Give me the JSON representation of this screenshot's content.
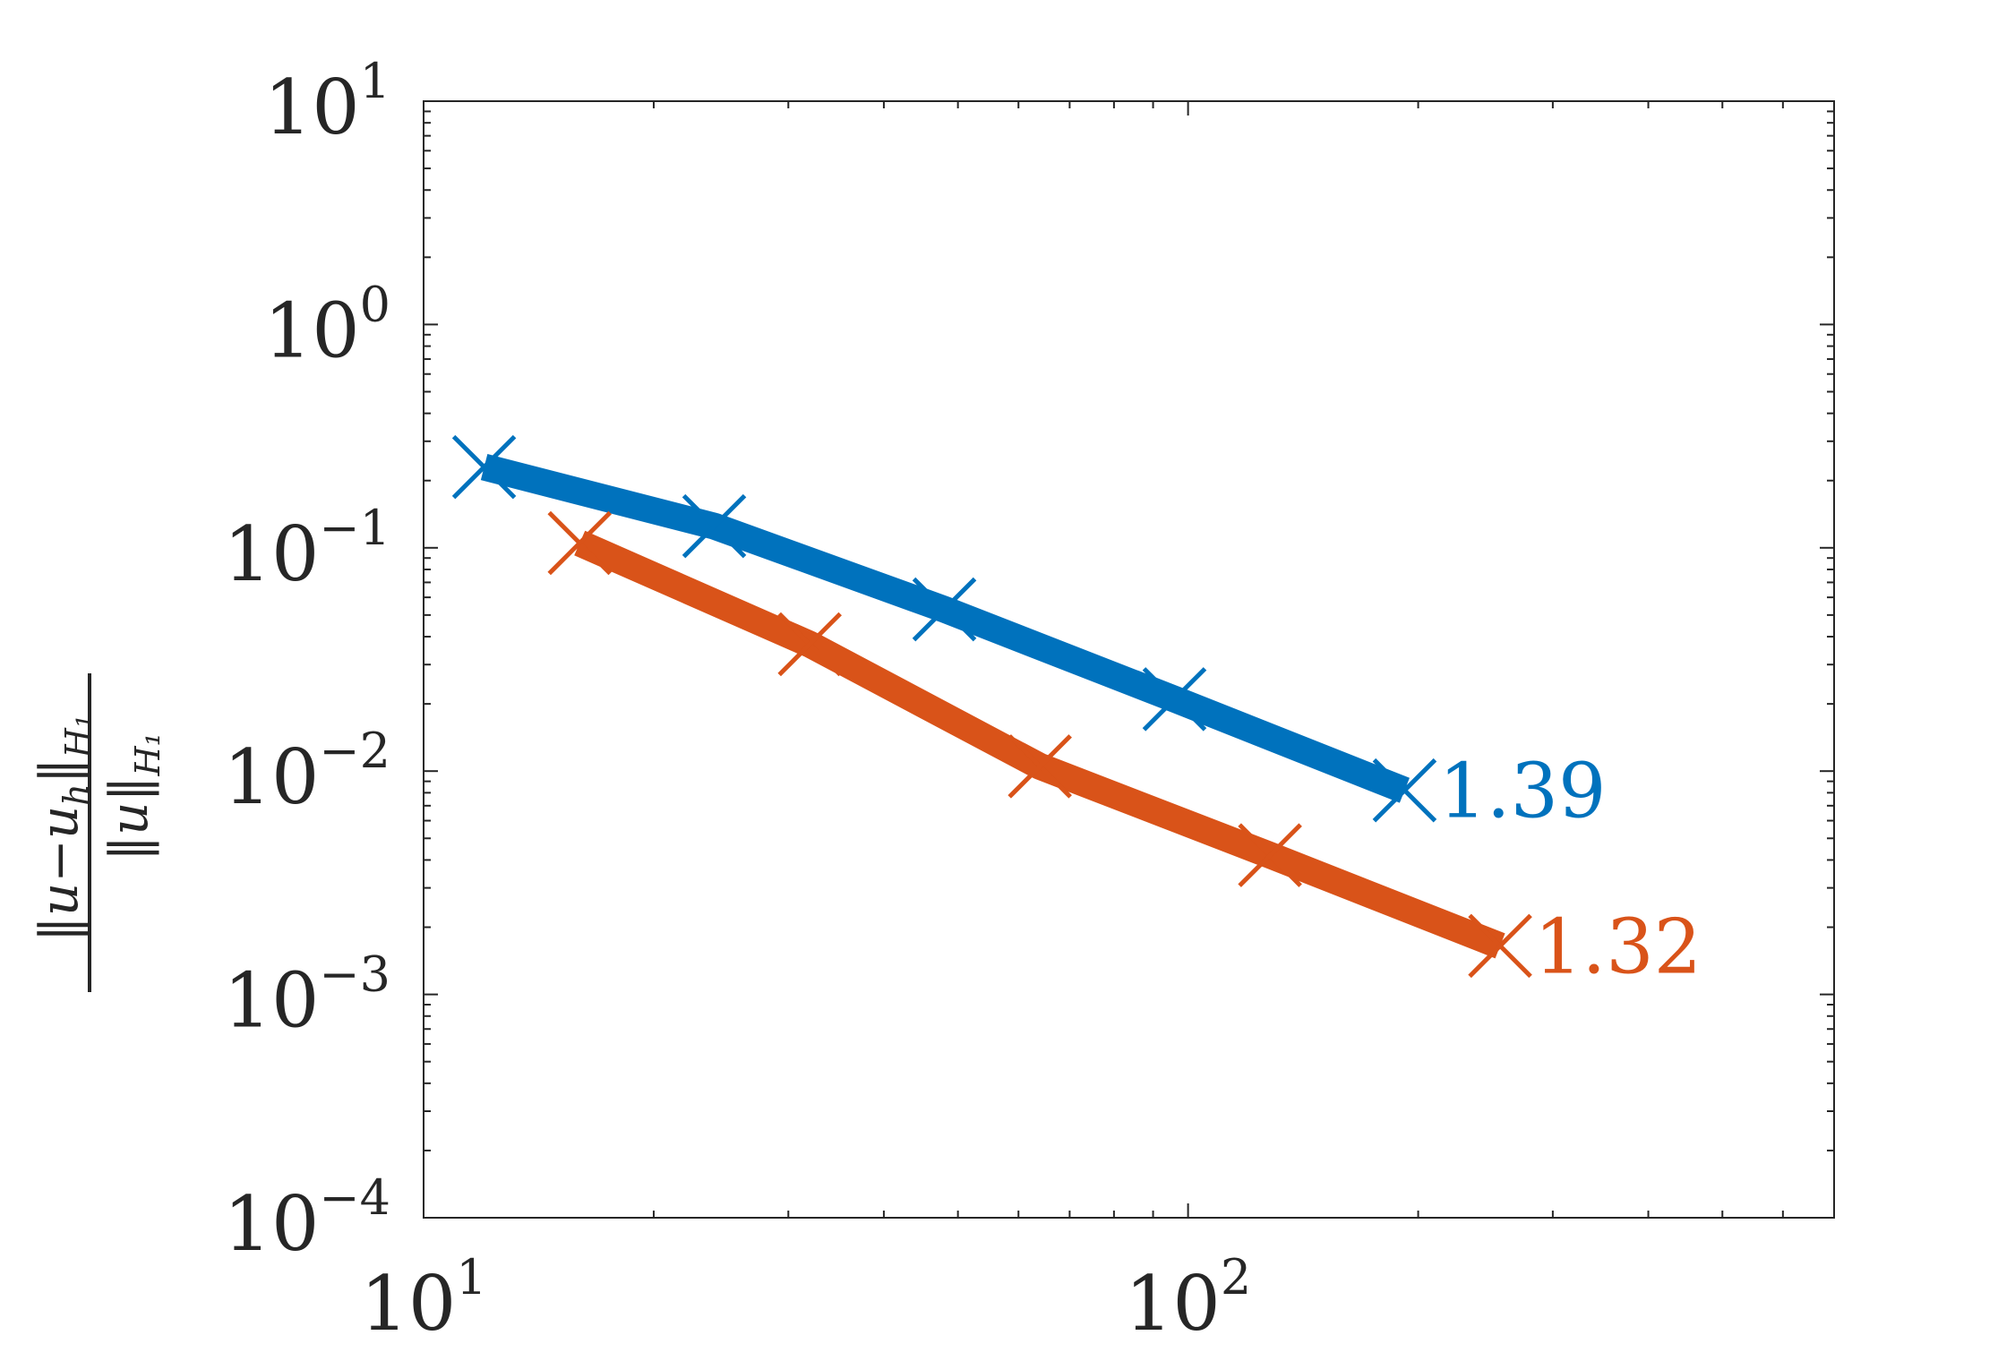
{
  "chart_data": {
    "type": "line",
    "xscale": "log",
    "yscale": "log",
    "xlim": [
      10,
      700
    ],
    "ylim": [
      0.0001,
      10
    ],
    "xlabel": "",
    "ylabel": "‖u−u_h‖_H1 / ‖u‖_H1",
    "ylabel_parts": {
      "numerator": "‖u−u",
      "numerator_sub": "h",
      "numerator_tail": "‖",
      "numerator_norm_sub": "H₁",
      "denominator": "‖u‖",
      "denominator_sub": "H₁"
    },
    "x_ticks": [
      {
        "value": 10,
        "base": "10",
        "exp": "1"
      },
      {
        "value": 100,
        "base": "10",
        "exp": "2"
      }
    ],
    "y_ticks": [
      {
        "value": 10,
        "base": "10",
        "exp": "1"
      },
      {
        "value": 1,
        "base": "10",
        "exp": "0"
      },
      {
        "value": 0.1,
        "base": "10",
        "exp": "−1"
      },
      {
        "value": 0.01,
        "base": "10",
        "exp": "−2"
      },
      {
        "value": 0.001,
        "base": "10",
        "exp": "−3"
      },
      {
        "value": 0.0001,
        "base": "10",
        "exp": "−4"
      }
    ],
    "grid": false,
    "legend": "none",
    "series": [
      {
        "color": "#0072BD",
        "marker": "x",
        "x": [
          12,
          24,
          48,
          96,
          192
        ],
        "y": [
          0.23,
          0.125,
          0.053,
          0.021,
          0.0082
        ],
        "label": "1.39"
      },
      {
        "color": "#D95319",
        "marker": "x",
        "x": [
          16,
          32,
          64,
          128,
          256
        ],
        "y": [
          0.105,
          0.037,
          0.0105,
          0.0042,
          0.00165
        ],
        "label": "1.32"
      }
    ]
  }
}
